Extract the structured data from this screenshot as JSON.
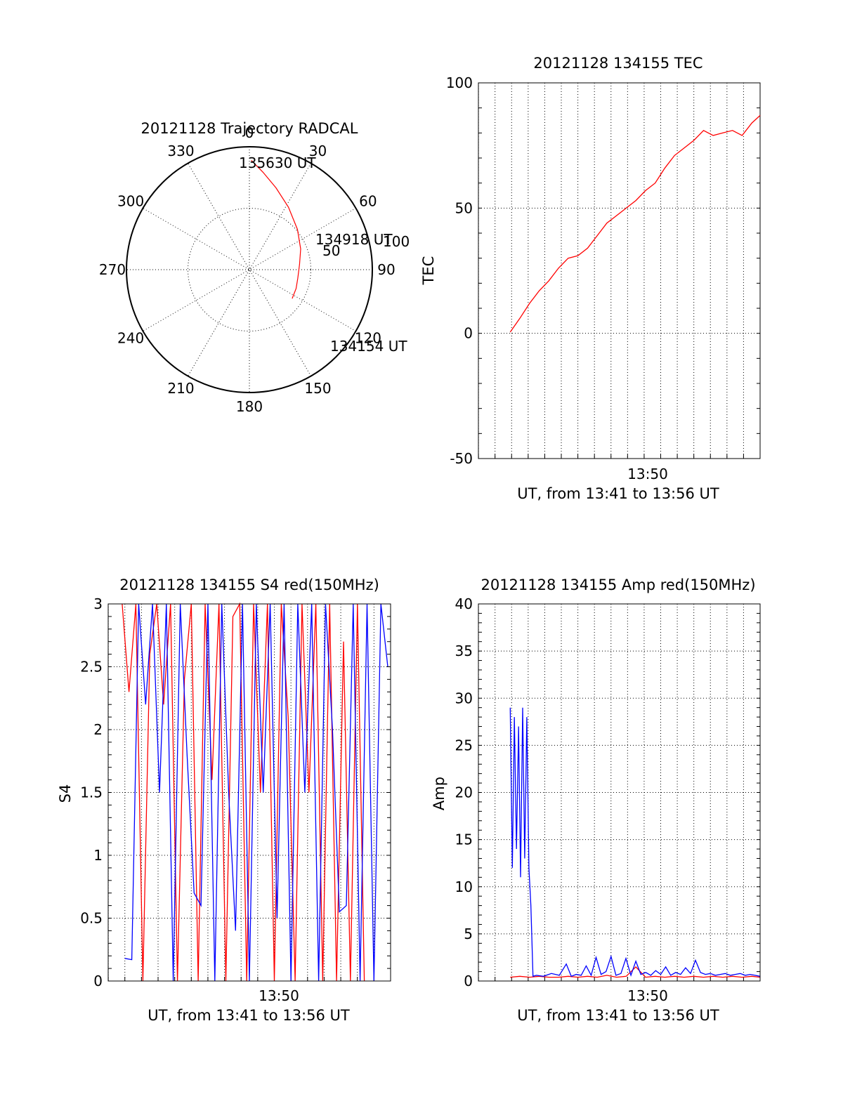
{
  "chart_data": [
    {
      "type": "polar",
      "title": "20121128 Trajectory RADCAL",
      "angle_ticks": [
        "0",
        "30",
        "60",
        "90",
        "120",
        "150",
        "180",
        "210",
        "240",
        "270",
        "300",
        "330"
      ],
      "radius_ticks": [
        "50",
        "100"
      ],
      "radius_range": [
        0,
        100
      ],
      "track_color": "#ff0000",
      "track": [
        {
          "azimuth": 1,
          "elevation": 89
        },
        {
          "azimuth": 8,
          "elevation": 80
        },
        {
          "azimuth": 18,
          "elevation": 70
        },
        {
          "azimuth": 32,
          "elevation": 60
        },
        {
          "azimuth": 50,
          "elevation": 51
        },
        {
          "azimuth": 68,
          "elevation": 45
        },
        {
          "azimuth": 84,
          "elevation": 41
        },
        {
          "azimuth": 100,
          "elevation": 40
        },
        {
          "azimuth": 112,
          "elevation": 41
        },
        {
          "azimuth": 124,
          "elevation": 42
        }
      ],
      "annotations": [
        {
          "text": "135630 UT",
          "azimuth": 1,
          "elevation": 89
        },
        {
          "text": "134918 UT",
          "azimuth": 68,
          "elevation": 45
        },
        {
          "text": "134154 UT",
          "azimuth": 124,
          "elevation": 42
        }
      ]
    },
    {
      "type": "line",
      "title": "20121128 134155 TEC",
      "xlabel": "UT, from 13:41 to 13:56 UT",
      "ylabel": "TEC",
      "xlim": [
        13.6666,
        13.95
      ],
      "ylim": [
        -50,
        100
      ],
      "yticks": [
        "100",
        "50",
        "0",
        "-50"
      ],
      "xticks": [
        "13:50"
      ],
      "grid": true,
      "series": [
        {
          "color": "#ff0000",
          "x": [
            13.6986,
            13.7083,
            13.7181,
            13.7278,
            13.7375,
            13.7472,
            13.7569,
            13.7667,
            13.7764,
            13.7861,
            13.7958,
            13.8056,
            13.8153,
            13.825,
            13.8347,
            13.8444,
            13.8542,
            13.8639,
            13.8736,
            13.8833,
            13.8931,
            13.9028,
            13.9125,
            13.9222,
            13.9319,
            13.9417,
            13.95
          ],
          "values": [
            0.5,
            6,
            12,
            17,
            21,
            26,
            30,
            31,
            34,
            39,
            44,
            47,
            50,
            53,
            57,
            60,
            66,
            71,
            74,
            77,
            81,
            79,
            80,
            81,
            79,
            84,
            87
          ]
        }
      ]
    },
    {
      "type": "line",
      "title": "20121128 134155 S4 red(150MHz)",
      "xlabel": "UT, from 13:41 to 13:56 UT",
      "ylabel": "S4",
      "xlim": [
        13.6666,
        13.95
      ],
      "ylim": [
        0,
        3
      ],
      "yticks": [
        "3",
        "2.5",
        "2",
        "1.5",
        "1",
        "0.5",
        "0"
      ],
      "xticks": [
        "13:50"
      ],
      "grid": true,
      "series": [
        {
          "color": "#ff0000",
          "x": [
            13.6806,
            13.6875,
            13.6944,
            13.7014,
            13.7083,
            13.7153,
            13.7222,
            13.7292,
            13.7361,
            13.7431,
            13.75,
            13.7569,
            13.7639,
            13.7708,
            13.7778,
            13.7847,
            13.7917,
            13.7986,
            13.8056,
            13.8125,
            13.8194,
            13.8264,
            13.8333,
            13.8403,
            13.8472,
            13.8542,
            13.8611,
            13.8681,
            13.875,
            13.8819,
            13.8889,
            13.8958,
            13.9028,
            13.9097,
            13.9167,
            13.9236
          ],
          "values": [
            3.0,
            2.3,
            3.0,
            0.0,
            2.6,
            3.0,
            2.2,
            3.0,
            0.0,
            2.4,
            3.0,
            0.0,
            3.0,
            1.6,
            3.0,
            0.0,
            2.9,
            3.0,
            0.0,
            3.0,
            1.5,
            3.0,
            0.0,
            3.0,
            2.1,
            0.0,
            3.0,
            1.5,
            3.0,
            0.0,
            3.0,
            0.0,
            2.7,
            0.0,
            3.0,
            0.0
          ]
        },
        {
          "color": "#0000ff",
          "x": [
            13.6833,
            13.6903,
            13.6972,
            13.7042,
            13.7111,
            13.7181,
            13.725,
            13.7319,
            13.7389,
            13.7458,
            13.7528,
            13.7597,
            13.7667,
            13.7736,
            13.7806,
            13.7875,
            13.7944,
            13.8014,
            13.8083,
            13.8153,
            13.8222,
            13.8292,
            13.8361,
            13.8431,
            13.85,
            13.8569,
            13.8639,
            13.8708,
            13.8778,
            13.8847,
            13.8917,
            13.8986,
            13.9056,
            13.9125,
            13.9194,
            13.9264,
            13.9333,
            13.9403,
            13.9472
          ],
          "values": [
            0.18,
            0.17,
            3.0,
            2.2,
            3.0,
            1.5,
            3.0,
            0.0,
            3.0,
            1.8,
            0.7,
            0.6,
            3.0,
            0.0,
            3.0,
            1.5,
            0.4,
            3.0,
            0.0,
            3.0,
            1.5,
            3.0,
            0.5,
            3.0,
            0.0,
            3.0,
            1.5,
            3.0,
            0.0,
            3.0,
            2.0,
            0.55,
            0.6,
            3.0,
            0.0,
            3.0,
            0.0,
            3.0,
            2.5
          ]
        }
      ]
    },
    {
      "type": "line",
      "title": "20121128 134155 Amp red(150MHz)",
      "xlabel": "UT, from 13:41 to 13:56 UT",
      "ylabel": "Amp",
      "xlim": [
        13.6666,
        13.95
      ],
      "ylim": [
        0,
        40
      ],
      "yticks": [
        "40",
        "35",
        "30",
        "25",
        "20",
        "15",
        "10",
        "5",
        "0"
      ],
      "xticks": [
        "13:50"
      ],
      "grid": true,
      "series": [
        {
          "color": "#ff0000",
          "x": [
            13.6986,
            13.7083,
            13.7181,
            13.7278,
            13.7375,
            13.7472,
            13.7569,
            13.7667,
            13.7764,
            13.7861,
            13.7958,
            13.8056,
            13.8153,
            13.825,
            13.8347,
            13.8444,
            13.8542,
            13.8639,
            13.8736,
            13.8833,
            13.8931,
            13.9028,
            13.9125,
            13.9222,
            13.9319,
            13.9417,
            13.95
          ],
          "values": [
            0.4,
            0.5,
            0.4,
            0.5,
            0.4,
            0.4,
            0.5,
            0.4,
            0.5,
            0.4,
            0.6,
            0.4,
            0.5,
            1.5,
            0.4,
            0.5,
            0.4,
            0.5,
            0.4,
            0.5,
            0.4,
            0.5,
            0.4,
            0.5,
            0.4,
            0.5,
            0.4
          ]
        },
        {
          "color": "#0000ff",
          "x": [
            13.6986,
            13.7007,
            13.7028,
            13.7049,
            13.707,
            13.709,
            13.7111,
            13.7132,
            13.7153,
            13.7174,
            13.7194,
            13.7215,
            13.725,
            13.732,
            13.74,
            13.748,
            13.755,
            13.76,
            13.765,
            13.77,
            13.775,
            13.78,
            13.785,
            13.79,
            13.795,
            13.8,
            13.805,
            13.81,
            13.815,
            13.82,
            13.825,
            13.83,
            13.835,
            13.84,
            13.845,
            13.85,
            13.855,
            13.86,
            13.865,
            13.87,
            13.875,
            13.88,
            13.885,
            13.89,
            13.895,
            13.9,
            13.905,
            13.91,
            13.915,
            13.92,
            13.925,
            13.93,
            13.935,
            13.94,
            13.945,
            13.95
          ],
          "values": [
            29,
            12,
            28,
            14,
            27,
            11,
            29,
            13,
            28,
            12,
            8,
            0.5,
            0.6,
            0.5,
            0.8,
            0.6,
            1.8,
            0.5,
            0.7,
            0.6,
            1.6,
            0.6,
            2.5,
            0.7,
            1.0,
            2.6,
            0.6,
            0.8,
            2.4,
            0.6,
            2.1,
            0.7,
            0.9,
            0.6,
            1.1,
            0.7,
            1.5,
            0.6,
            0.9,
            0.7,
            1.4,
            0.8,
            2.2,
            0.9,
            0.7,
            0.8,
            0.6,
            0.7,
            0.8,
            0.6,
            0.7,
            0.8,
            0.6,
            0.7,
            0.6,
            0.5
          ]
        }
      ]
    }
  ]
}
